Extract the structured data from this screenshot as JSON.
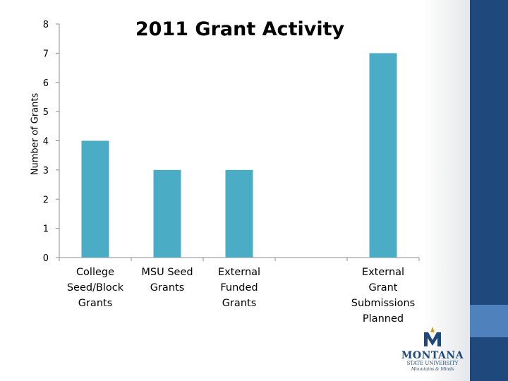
{
  "chart_data": {
    "type": "bar",
    "title": "2011 Grant Activity",
    "xlabel": "",
    "ylabel": "Number of Grants",
    "ylim": [
      0,
      8
    ],
    "yticks": [
      "0",
      "1",
      "2",
      "3",
      "4",
      "5",
      "6",
      "7",
      "8"
    ],
    "categories": [
      "College\nSeed/Block\nGrants",
      "MSU Seed\nGrants",
      "External\nFunded\nGrants",
      "",
      "External\nGrant\nSubmissions\nPlanned"
    ],
    "values": [
      4,
      3,
      3,
      0,
      7
    ],
    "bar_color": "#4bacc6",
    "grid": false
  },
  "logo": {
    "name": "MONTANA",
    "sub": "STATE UNIVERSITY",
    "tag": "Mountains & Minds"
  },
  "colors": {
    "sidebar": "#1f497d",
    "accent": "#4f81bd"
  }
}
